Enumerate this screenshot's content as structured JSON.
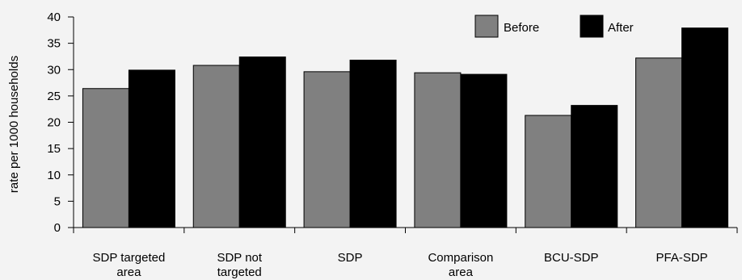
{
  "chart_data": {
    "type": "bar",
    "title": "",
    "xlabel": "",
    "ylabel": "rate per 1000 households",
    "ylim": [
      0,
      40
    ],
    "yticks": [
      0,
      5,
      10,
      15,
      20,
      25,
      30,
      35,
      40
    ],
    "grid": false,
    "legend_position": "top-right",
    "categories": [
      [
        "SDP targeted",
        "area"
      ],
      [
        "SDP not",
        "targeted"
      ],
      [
        "SDP"
      ],
      [
        "Comparison",
        "area"
      ],
      [
        "BCU-SDP"
      ],
      [
        "PFA-SDP"
      ]
    ],
    "series": [
      {
        "name": "Before",
        "color": "#808080",
        "values": [
          26.4,
          30.8,
          29.6,
          29.4,
          21.3,
          32.2
        ]
      },
      {
        "name": "After",
        "color": "#000000",
        "values": [
          29.9,
          32.4,
          31.8,
          29.1,
          23.2,
          37.9
        ]
      }
    ]
  }
}
